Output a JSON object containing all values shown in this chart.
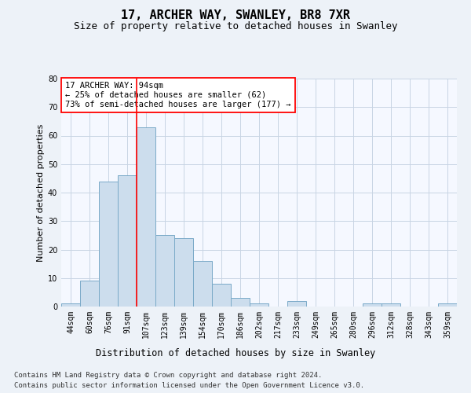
{
  "title_line1": "17, ARCHER WAY, SWANLEY, BR8 7XR",
  "title_line2": "Size of property relative to detached houses in Swanley",
  "xlabel": "Distribution of detached houses by size in Swanley",
  "ylabel": "Number of detached properties",
  "categories": [
    "44sqm",
    "60sqm",
    "76sqm",
    "91sqm",
    "107sqm",
    "123sqm",
    "139sqm",
    "154sqm",
    "170sqm",
    "186sqm",
    "202sqm",
    "217sqm",
    "233sqm",
    "249sqm",
    "265sqm",
    "280sqm",
    "296sqm",
    "312sqm",
    "328sqm",
    "343sqm",
    "359sqm"
  ],
  "values": [
    1,
    9,
    44,
    46,
    63,
    25,
    24,
    16,
    8,
    3,
    1,
    0,
    2,
    0,
    0,
    0,
    1,
    1,
    0,
    0,
    1
  ],
  "bar_color": "#ccdded",
  "bar_edge_color": "#7aaac8",
  "annotation_line1": "17 ARCHER WAY: 94sqm",
  "annotation_line2": "← 25% of detached houses are smaller (62)",
  "annotation_line3": "73% of semi-detached houses are larger (177) →",
  "red_line_x": 3.5,
  "ylim": [
    0,
    80
  ],
  "yticks": [
    0,
    10,
    20,
    30,
    40,
    50,
    60,
    70,
    80
  ],
  "footer_line1": "Contains HM Land Registry data © Crown copyright and database right 2024.",
  "footer_line2": "Contains public sector information licensed under the Open Government Licence v3.0.",
  "bg_color": "#edf2f8",
  "plot_bg_color": "#f5f8ff",
  "grid_color": "#c8d4e4",
  "title_fontsize": 11,
  "subtitle_fontsize": 9,
  "annotation_fontsize": 7.5,
  "ylabel_fontsize": 8,
  "xlabel_fontsize": 8.5,
  "tick_fontsize": 7,
  "footer_fontsize": 6.5
}
